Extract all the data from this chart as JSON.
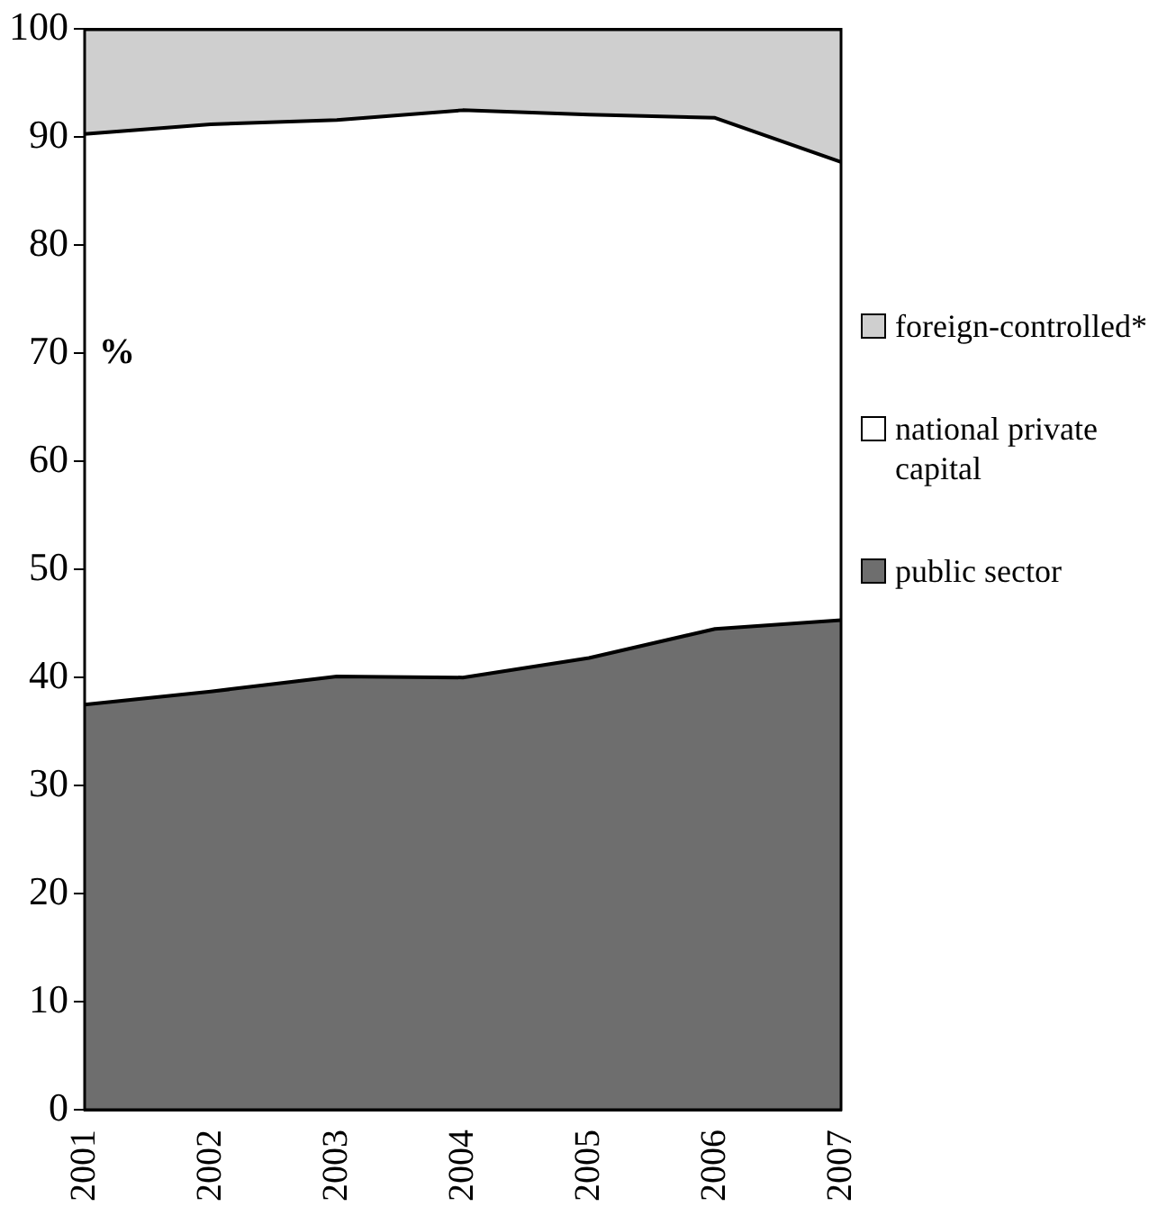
{
  "chart_data": {
    "type": "area",
    "stacked": true,
    "ylabel": "%",
    "categories": [
      "2001",
      "2002",
      "2003",
      "2004",
      "2005",
      "2006",
      "2007"
    ],
    "series": [
      {
        "name": "public sector",
        "color": "#6e6e6e",
        "values": [
          37.5,
          38.7,
          40.1,
          40.0,
          41.8,
          44.5,
          45.3
        ]
      },
      {
        "name": "national private capital",
        "color": "#ffffff",
        "values": [
          52.8,
          52.5,
          51.5,
          52.5,
          50.3,
          47.3,
          42.4
        ]
      },
      {
        "name": "foreign-controlled*",
        "color": "#cfcfcf",
        "values": [
          9.7,
          8.8,
          8.4,
          7.5,
          7.9,
          8.2,
          12.3
        ]
      }
    ],
    "ylim": [
      0,
      100
    ],
    "yticks": [
      0,
      10,
      20,
      30,
      40,
      50,
      60,
      70,
      80,
      90,
      100
    ],
    "grid": false,
    "legend": "right"
  }
}
